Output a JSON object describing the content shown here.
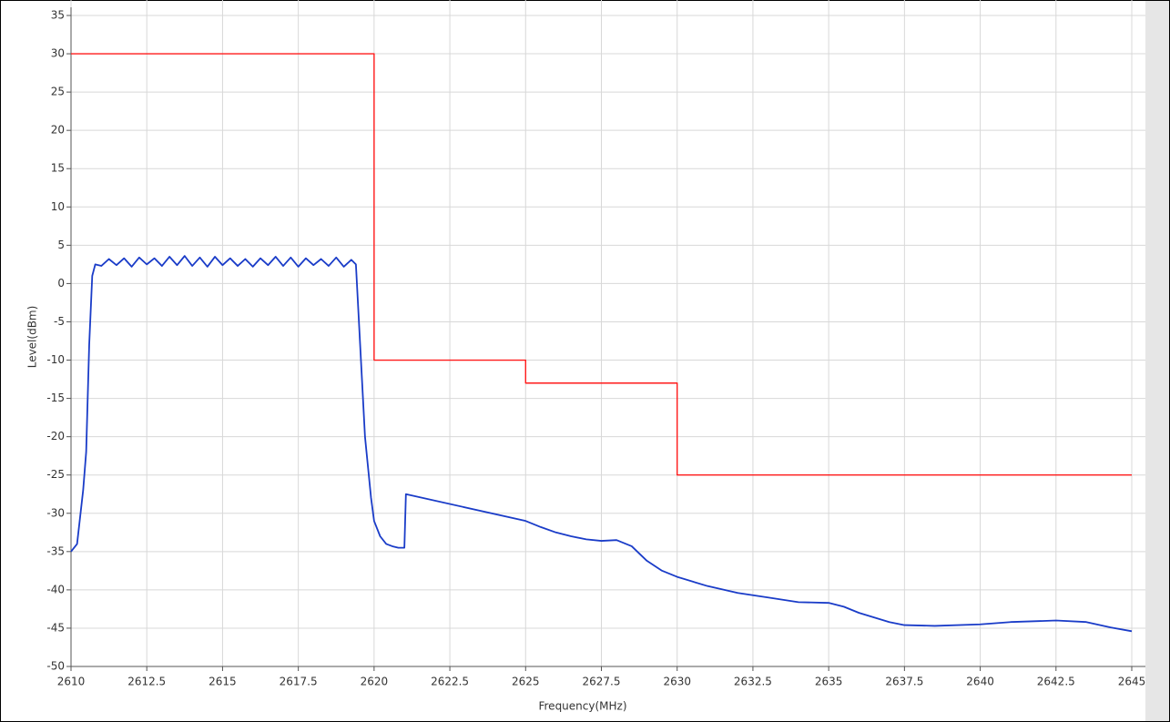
{
  "chart_data": {
    "type": "line",
    "xlabel": "Frequency(MHz)",
    "ylabel": "Level(dBm)",
    "xlim": [
      2610,
      2645
    ],
    "ylim": [
      -50,
      35
    ],
    "xticks": [
      2610,
      2612.5,
      2615,
      2617.5,
      2620,
      2622.5,
      2625,
      2627.5,
      2630,
      2632.5,
      2635,
      2637.5,
      2640,
      2642.5,
      2645
    ],
    "yticks": [
      -50,
      -45,
      -40,
      -35,
      -30,
      -25,
      -20,
      -15,
      -10,
      -5,
      0,
      5,
      10,
      15,
      20,
      25,
      30,
      35
    ],
    "grid": true,
    "series": [
      {
        "color": "#ff1a1a",
        "x": [
          2610,
          2620,
          2620,
          2625,
          2625,
          2630,
          2630,
          2645
        ],
        "values": [
          30,
          30,
          -10,
          -10,
          -13,
          -13,
          -25,
          -25
        ]
      },
      {
        "color": "#1a3cc8",
        "x": [
          2610,
          2610.2,
          2610.4,
          2610.5,
          2610.6,
          2610.7,
          2610.8,
          2611,
          2611.25,
          2611.5,
          2611.75,
          2612,
          2612.25,
          2612.5,
          2612.75,
          2613,
          2613.25,
          2613.5,
          2613.75,
          2614,
          2614.25,
          2614.5,
          2614.75,
          2615,
          2615.25,
          2615.5,
          2615.75,
          2616,
          2616.25,
          2616.5,
          2616.75,
          2617,
          2617.25,
          2617.5,
          2617.75,
          2618,
          2618.25,
          2618.5,
          2618.75,
          2619,
          2619.25,
          2619.4,
          2619.5,
          2619.7,
          2619.9,
          2620,
          2620.2,
          2620.4,
          2620.6,
          2620.8,
          2621,
          2621.05,
          2625,
          2625.5,
          2626,
          2626.5,
          2627,
          2627.5,
          2628,
          2628.5,
          2629,
          2629.5,
          2630,
          2631,
          2632,
          2633,
          2634,
          2635,
          2635.5,
          2636,
          2637,
          2637.5,
          2638.5,
          2640,
          2641,
          2642.5,
          2643.5,
          2644.3,
          2645
        ],
        "values": [
          -35,
          -34,
          -27,
          -22,
          -8,
          1,
          2.5,
          2.3,
          3.2,
          2.4,
          3.3,
          2.2,
          3.4,
          2.5,
          3.3,
          2.3,
          3.5,
          2.4,
          3.6,
          2.3,
          3.4,
          2.2,
          3.5,
          2.4,
          3.3,
          2.3,
          3.2,
          2.2,
          3.3,
          2.4,
          3.5,
          2.3,
          3.4,
          2.2,
          3.3,
          2.4,
          3.2,
          2.3,
          3.4,
          2.2,
          3.1,
          2.5,
          -5,
          -20,
          -28,
          -31,
          -33,
          -34,
          -34.3,
          -34.5,
          -34.5,
          -27.5,
          -31,
          -31.8,
          -32.5,
          -33,
          -33.4,
          -33.6,
          -33.5,
          -34.3,
          -36.2,
          -37.5,
          -38.3,
          -39.5,
          -40.4,
          -41,
          -41.6,
          -41.7,
          -42.2,
          -43,
          -44.2,
          -44.6,
          -44.7,
          -44.5,
          -44.2,
          -44,
          -44.2,
          -44.9,
          -45.4
        ]
      }
    ]
  }
}
